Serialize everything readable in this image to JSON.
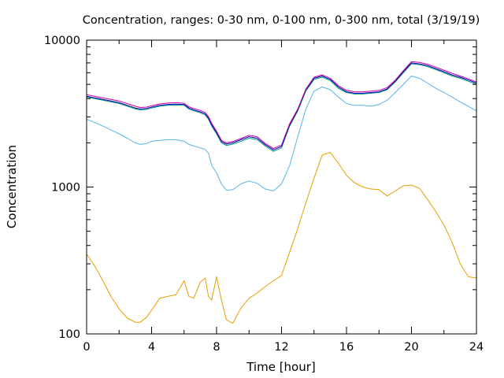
{
  "chart_data": {
    "type": "line",
    "title": "Concentration, ranges: 0-30 nm, 0-100 nm, 0-300 nm, total (3/19/19)",
    "xlabel": "Time [hour]",
    "ylabel": "Concentration",
    "xlim": [
      0,
      24
    ],
    "ylim": [
      100,
      10000
    ],
    "yscale": "log",
    "grid": false,
    "legend": "none",
    "x_ticks": [
      0,
      4,
      8,
      12,
      16,
      20,
      24
    ],
    "x_tick_labels": [
      "0",
      "4",
      "8",
      "12",
      "16",
      "20",
      "24"
    ],
    "y_ticks": [
      100,
      1000,
      10000
    ],
    "y_tick_labels": [
      "100",
      "1000",
      "10000"
    ],
    "series": [
      {
        "color": "#e69f00",
        "x": [
          0,
          0.5,
          1,
          1.5,
          2,
          2.5,
          3,
          3.3,
          3.7,
          4,
          4.5,
          5,
          5.5,
          6,
          6.3,
          6.6,
          7,
          7.3,
          7.5,
          7.7,
          8,
          8.3,
          8.6,
          9,
          9.5,
          10,
          10.5,
          11,
          11.5,
          12,
          12.5,
          13,
          13.5,
          14,
          14.5,
          15,
          15.5,
          16,
          16.5,
          17,
          17.5,
          18,
          18.5,
          19,
          19.5,
          20,
          20.5,
          21,
          21.5,
          22,
          22.5,
          23,
          23.5,
          24
        ],
        "values": [
          350,
          290,
          230,
          180,
          148,
          128,
          120,
          120,
          130,
          145,
          175,
          180,
          185,
          230,
          180,
          175,
          225,
          240,
          180,
          170,
          245,
          170,
          125,
          118,
          150,
          175,
          190,
          210,
          230,
          250,
          360,
          520,
          780,
          1150,
          1650,
          1720,
          1450,
          1200,
          1070,
          1000,
          970,
          960,
          870,
          940,
          1020,
          1030,
          980,
          820,
          680,
          550,
          420,
          300,
          245,
          240
        ]
      },
      {
        "color": "#56b4e9",
        "x": [
          0,
          0.5,
          1,
          1.5,
          2,
          2.5,
          3,
          3.3,
          3.7,
          4,
          4.5,
          5,
          5.5,
          6,
          6.3,
          6.6,
          7,
          7.3,
          7.5,
          7.7,
          8,
          8.3,
          8.6,
          9,
          9.5,
          10,
          10.5,
          11,
          11.5,
          12,
          12.5,
          13,
          13.5,
          14,
          14.5,
          15,
          15.5,
          16,
          16.5,
          17,
          17.5,
          18,
          18.5,
          19,
          19.5,
          20,
          20.5,
          21,
          21.5,
          22,
          22.5,
          23,
          23.5,
          24
        ],
        "values": [
          2900,
          2750,
          2600,
          2450,
          2300,
          2150,
          2000,
          1950,
          1980,
          2050,
          2080,
          2100,
          2100,
          2050,
          1950,
          1900,
          1850,
          1800,
          1700,
          1400,
          1250,
          1050,
          950,
          960,
          1050,
          1100,
          1060,
          970,
          940,
          1050,
          1400,
          2200,
          3400,
          4500,
          4800,
          4600,
          4100,
          3700,
          3600,
          3600,
          3550,
          3650,
          3900,
          4400,
          5000,
          5700,
          5500,
          5100,
          4700,
          4400,
          4100,
          3800,
          3550,
          3300
        ]
      },
      {
        "color": "#009e73",
        "x": [
          0,
          0.5,
          1,
          1.5,
          2,
          2.5,
          3,
          3.3,
          3.7,
          4,
          4.5,
          5,
          5.5,
          6,
          6.3,
          6.6,
          7,
          7.3,
          7.5,
          7.7,
          8,
          8.3,
          8.6,
          9,
          9.5,
          10,
          10.5,
          11,
          11.5,
          12,
          12.5,
          13,
          13.5,
          14,
          14.5,
          15,
          15.5,
          16,
          16.5,
          17,
          17.5,
          18,
          18.5,
          19,
          19.5,
          20,
          20.5,
          21,
          21.5,
          22,
          22.5,
          23,
          23.5,
          24
        ],
        "values": [
          4100,
          4000,
          3900,
          3800,
          3700,
          3550,
          3400,
          3350,
          3380,
          3450,
          3550,
          3600,
          3620,
          3600,
          3400,
          3300,
          3200,
          3100,
          2900,
          2600,
          2300,
          2000,
          1920,
          1960,
          2050,
          2150,
          2100,
          1900,
          1750,
          1850,
          2600,
          3300,
          4500,
          5400,
          5600,
          5300,
          4700,
          4400,
          4300,
          4300,
          4350,
          4400,
          4600,
          5200,
          6000,
          6900,
          6800,
          6600,
          6300,
          6000,
          5700,
          5500,
          5250,
          5000
        ]
      },
      {
        "color": "#0000c0",
        "x": [
          0,
          0.5,
          1,
          1.5,
          2,
          2.5,
          3,
          3.3,
          3.7,
          4,
          4.5,
          5,
          5.5,
          6,
          6.3,
          6.6,
          7,
          7.3,
          7.5,
          7.7,
          8,
          8.3,
          8.6,
          9,
          9.5,
          10,
          10.5,
          11,
          11.5,
          12,
          12.5,
          13,
          13.5,
          14,
          14.5,
          15,
          15.5,
          16,
          16.5,
          17,
          17.5,
          18,
          18.5,
          19,
          19.5,
          20,
          20.5,
          21,
          21.5,
          22,
          22.5,
          23,
          23.5,
          24
        ],
        "values": [
          4150,
          4050,
          3950,
          3850,
          3750,
          3600,
          3450,
          3400,
          3430,
          3500,
          3600,
          3650,
          3670,
          3650,
          3450,
          3350,
          3250,
          3150,
          2950,
          2650,
          2350,
          2040,
          1960,
          2000,
          2100,
          2200,
          2150,
          1940,
          1790,
          1890,
          2650,
          3350,
          4600,
          5500,
          5700,
          5400,
          4800,
          4450,
          4350,
          4350,
          4400,
          4450,
          4650,
          5250,
          6100,
          7000,
          6900,
          6700,
          6400,
          6100,
          5800,
          5600,
          5350,
          5100
        ]
      },
      {
        "color": "#cc0099",
        "x": [
          0,
          0.5,
          1,
          1.5,
          2,
          2.5,
          3,
          3.3,
          3.7,
          4,
          4.5,
          5,
          5.5,
          6,
          6.3,
          6.6,
          7,
          7.3,
          7.5,
          7.7,
          8,
          8.3,
          8.6,
          9,
          9.5,
          10,
          10.5,
          11,
          11.5,
          12,
          12.5,
          13,
          13.5,
          14,
          14.5,
          15,
          15.5,
          16,
          16.5,
          17,
          17.5,
          18,
          18.5,
          19,
          19.5,
          20,
          20.5,
          21,
          21.5,
          22,
          22.5,
          23,
          23.5,
          24
        ],
        "values": [
          4250,
          4150,
          4050,
          3950,
          3850,
          3700,
          3550,
          3480,
          3500,
          3580,
          3680,
          3730,
          3750,
          3720,
          3520,
          3420,
          3320,
          3220,
          3020,
          2720,
          2400,
          2080,
          2000,
          2040,
          2140,
          2250,
          2200,
          1980,
          1830,
          1930,
          2700,
          3400,
          4650,
          5600,
          5800,
          5500,
          4900,
          4550,
          4450,
          4450,
          4500,
          4550,
          4750,
          5350,
          6200,
          7150,
          7050,
          6850,
          6550,
          6250,
          5950,
          5700,
          5450,
          5200
        ]
      }
    ]
  }
}
